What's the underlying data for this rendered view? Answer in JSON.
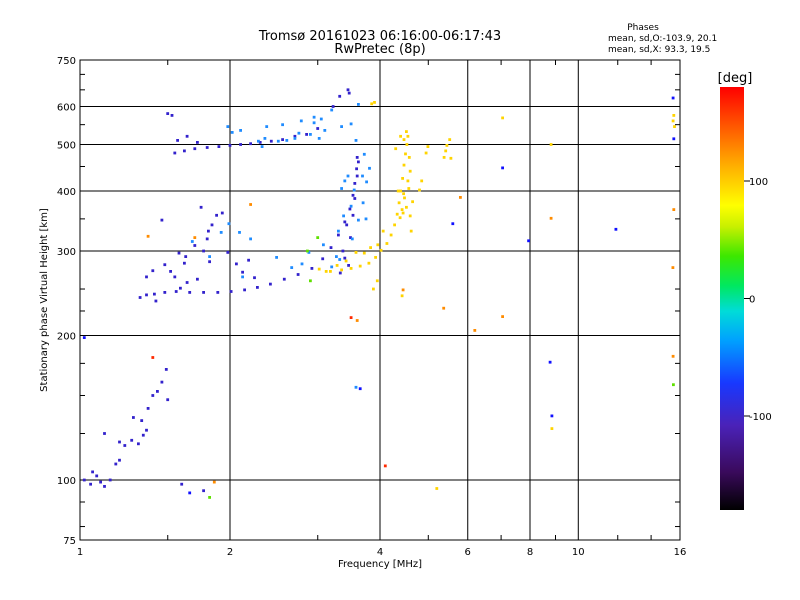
{
  "chart_data": {
    "type": "scatter",
    "title": "Tromsø 20161023 06:16:00-06:17:43",
    "subtitle": "RwPretec (8p)",
    "xlabel": "Frequency [MHz]",
    "ylabel": "Stationary phase Virtual Height [km]",
    "x_scale": "log",
    "y_scale": "log",
    "xlim": [
      1,
      16
    ],
    "ylim": [
      75,
      750
    ],
    "x_ticks": [
      1,
      2,
      4,
      6,
      8,
      10,
      16
    ],
    "y_ticks": [
      75,
      100,
      200,
      300,
      400,
      500,
      600,
      750
    ],
    "grid": true,
    "phases_box": {
      "title": "Phases",
      "line_o": "mean, sd,O:-103.9, 20.1",
      "line_x": "mean, sd,X:  93.3, 19.5"
    },
    "colorbar": {
      "label": "[deg]",
      "range": [
        -180,
        180
      ],
      "ticks": [
        100,
        0,
        -100
      ]
    },
    "series": [
      {
        "points": [
          [
            1.02,
            100
          ],
          [
            1.05,
            98
          ],
          [
            1.08,
            102
          ],
          [
            1.1,
            99
          ],
          [
            1.12,
            97
          ],
          [
            1.06,
            104
          ],
          [
            1.15,
            100
          ],
          [
            1.18,
            108
          ],
          [
            1.2,
            120
          ],
          [
            1.23,
            118
          ],
          [
            1.27,
            121
          ],
          [
            1.31,
            119
          ],
          [
            1.34,
            124
          ],
          [
            1.36,
            127
          ],
          [
            1.33,
            133
          ],
          [
            1.37,
            141
          ],
          [
            1.4,
            150
          ],
          [
            1.43,
            153
          ],
          [
            1.46,
            160
          ],
          [
            1.49,
            170
          ],
          [
            1.32,
            240
          ],
          [
            1.36,
            243
          ],
          [
            1.41,
            244
          ],
          [
            1.48,
            246
          ],
          [
            1.56,
            247
          ],
          [
            1.66,
            246
          ],
          [
            1.77,
            246
          ],
          [
            1.89,
            246
          ],
          [
            2.01,
            247
          ],
          [
            2.14,
            249
          ],
          [
            2.27,
            252
          ],
          [
            2.41,
            256
          ],
          [
            2.57,
            262
          ],
          [
            2.74,
            268
          ],
          [
            2.92,
            276
          ],
          [
            3.07,
            289
          ],
          [
            3.19,
            305
          ],
          [
            3.3,
            324
          ],
          [
            3.4,
            345
          ],
          [
            3.48,
            367
          ],
          [
            3.53,
            392
          ],
          [
            3.56,
            415
          ],
          [
            3.59,
            445
          ],
          [
            3.6,
            470
          ],
          [
            3.33,
            270
          ],
          [
            3.46,
            280
          ],
          [
            3.4,
            290
          ],
          [
            3.49,
            320
          ],
          [
            3.43,
            340
          ],
          [
            3.37,
            300
          ],
          [
            3.53,
            356
          ],
          [
            3.56,
            386
          ],
          [
            3.6,
            430
          ],
          [
            3.62,
            460
          ],
          [
            1.55,
            480
          ],
          [
            1.62,
            485
          ],
          [
            1.7,
            490
          ],
          [
            1.8,
            493
          ],
          [
            1.9,
            495
          ],
          [
            2.0,
            498
          ],
          [
            2.1,
            500
          ],
          [
            2.2,
            502
          ],
          [
            2.3,
            505
          ],
          [
            2.42,
            508
          ],
          [
            2.55,
            512
          ],
          [
            2.7,
            520
          ],
          [
            2.85,
            525
          ],
          [
            3.0,
            540
          ],
          [
            1.57,
            510
          ],
          [
            1.64,
            520
          ],
          [
            1.72,
            505
          ],
          [
            1.5,
            580
          ],
          [
            1.53,
            575
          ],
          [
            3.22,
            600
          ],
          [
            3.32,
            630
          ],
          [
            3.45,
            650
          ],
          [
            3.47,
            640
          ],
          [
            1.36,
            265
          ],
          [
            1.4,
            273
          ],
          [
            1.48,
            281
          ],
          [
            1.58,
            297
          ],
          [
            1.7,
            308
          ],
          [
            1.77,
            300
          ],
          [
            1.82,
            285
          ],
          [
            1.72,
            262
          ],
          [
            1.64,
            258
          ],
          [
            1.55,
            265
          ],
          [
            1.62,
            283
          ],
          [
            1.8,
            318
          ],
          [
            1.84,
            340
          ],
          [
            1.88,
            356
          ],
          [
            1.93,
            360
          ],
          [
            1.75,
            370
          ],
          [
            1.81,
            330
          ],
          [
            1.98,
            298
          ],
          [
            2.06,
            282
          ],
          [
            2.18,
            287
          ],
          [
            2.24,
            264
          ],
          [
            2.12,
            271
          ],
          [
            1.46,
            348
          ],
          [
            1.63,
            292
          ],
          [
            1.52,
            272
          ],
          [
            1.42,
            236
          ],
          [
            1.59,
            251
          ],
          [
            1.77,
            95
          ],
          [
            1.6,
            98
          ],
          [
            1.12,
            125
          ],
          [
            1.2,
            110
          ],
          [
            1.5,
            147
          ],
          [
            1.28,
            135
          ]
        ]
      },
      {
        "points": [
          [
            2.5,
            508
          ],
          [
            2.7,
            515
          ],
          [
            2.9,
            525
          ],
          [
            3.1,
            535
          ],
          [
            3.35,
            545
          ],
          [
            3.5,
            552
          ],
          [
            2.55,
            550
          ],
          [
            2.78,
            560
          ],
          [
            2.95,
            570
          ],
          [
            3.05,
            565
          ],
          [
            3.2,
            590
          ],
          [
            3.62,
            606
          ],
          [
            3.52,
            318
          ],
          [
            3.62,
            348
          ],
          [
            3.7,
            378
          ],
          [
            3.76,
            418
          ],
          [
            3.81,
            446
          ],
          [
            3.72,
            477
          ],
          [
            3.2,
            278
          ],
          [
            3.32,
            288
          ],
          [
            3.5,
            372
          ],
          [
            3.27,
            292
          ],
          [
            3.69,
            430
          ],
          [
            3.75,
            350
          ],
          [
            2.28,
            508
          ],
          [
            2.32,
            495
          ],
          [
            2.37,
            545
          ],
          [
            2.1,
            535
          ],
          [
            3.58,
            510
          ],
          [
            3.02,
            515
          ],
          [
            2.02,
            530
          ],
          [
            1.98,
            545
          ],
          [
            1.92,
            328
          ],
          [
            1.99,
            342
          ],
          [
            2.09,
            328
          ],
          [
            2.2,
            318
          ],
          [
            2.48,
            291
          ],
          [
            2.66,
            277
          ],
          [
            2.79,
            282
          ],
          [
            2.12,
            265
          ],
          [
            3.35,
            405
          ],
          [
            3.4,
            420
          ],
          [
            3.45,
            430
          ],
          [
            3.55,
            402
          ],
          [
            3.3,
            330
          ],
          [
            3.38,
            355
          ],
          [
            2.88,
            298
          ],
          [
            3.08,
            309
          ],
          [
            3.58,
            156
          ],
          [
            1.82,
            292
          ],
          [
            1.68,
            314
          ],
          [
            2.6,
            510
          ],
          [
            2.35,
            515
          ],
          [
            2.75,
            528
          ],
          [
            2.95,
            555
          ]
        ]
      },
      {
        "points": [
          [
            3.18,
            272
          ],
          [
            3.35,
            274
          ],
          [
            3.5,
            276
          ],
          [
            3.65,
            279
          ],
          [
            3.8,
            283
          ],
          [
            3.92,
            291
          ],
          [
            4.02,
            301
          ],
          [
            4.13,
            311
          ],
          [
            4.21,
            324
          ],
          [
            4.28,
            340
          ],
          [
            4.33,
            358
          ],
          [
            4.37,
            378
          ],
          [
            4.4,
            400
          ],
          [
            4.44,
            425
          ],
          [
            4.47,
            453
          ],
          [
            4.5,
            478
          ],
          [
            4.53,
            500
          ],
          [
            4.55,
            520
          ],
          [
            3.02,
            275
          ],
          [
            3.12,
            272
          ],
          [
            3.28,
            280
          ],
          [
            3.42,
            286
          ],
          [
            3.58,
            298
          ],
          [
            3.72,
            297
          ],
          [
            3.83,
            305
          ],
          [
            3.96,
            309
          ],
          [
            4.06,
            330
          ],
          [
            4.35,
            400
          ],
          [
            4.43,
            366
          ],
          [
            4.48,
            387
          ],
          [
            4.39,
            352
          ],
          [
            4.55,
            420
          ],
          [
            4.6,
            440
          ],
          [
            4.65,
            380
          ],
          [
            4.47,
            512
          ],
          [
            4.52,
            532
          ],
          [
            4.58,
            470
          ],
          [
            4.3,
            490
          ],
          [
            4.4,
            520
          ],
          [
            4.46,
            395
          ],
          [
            4.45,
            360
          ],
          [
            4.57,
            405
          ],
          [
            4.6,
            355
          ],
          [
            4.52,
            370
          ],
          [
            4.62,
            330
          ],
          [
            3.88,
            250
          ],
          [
            3.95,
            260
          ],
          [
            3.85,
            608
          ],
          [
            3.9,
            612
          ],
          [
            5.42,
            485
          ],
          [
            5.45,
            498
          ],
          [
            5.52,
            512
          ],
          [
            5.55,
            468
          ],
          [
            5.38,
            470
          ],
          [
            4.95,
            480
          ],
          [
            4.99,
            495
          ],
          [
            4.8,
            402
          ],
          [
            4.85,
            420
          ],
          [
            4.43,
            242
          ],
          [
            7.05,
            568
          ],
          [
            8.82,
            500
          ],
          [
            8.85,
            128
          ],
          [
            15.5,
            560
          ],
          [
            15.55,
            575
          ],
          [
            15.6,
            545
          ],
          [
            5.2,
            96
          ]
        ]
      },
      {
        "points": [
          [
            1.7,
            320
          ],
          [
            2.2,
            375
          ],
          [
            3.6,
            215
          ],
          [
            4.45,
            249
          ],
          [
            5.37,
            228
          ],
          [
            6.2,
            205
          ],
          [
            7.05,
            219
          ],
          [
            8.82,
            351
          ],
          [
            15.55,
            366
          ],
          [
            15.5,
            181
          ],
          [
            15.48,
            277
          ],
          [
            5.8,
            388
          ],
          [
            1.37,
            322
          ],
          [
            1.86,
            99
          ]
        ]
      },
      {
        "points": [
          [
            1.82,
            92
          ],
          [
            2.86,
            300
          ],
          [
            2.9,
            260
          ],
          [
            3.0,
            320
          ],
          [
            15.52,
            158
          ]
        ]
      },
      {
        "points": [
          [
            4.1,
            107
          ],
          [
            3.5,
            218
          ],
          [
            1.4,
            180
          ]
        ]
      },
      {
        "points": [
          [
            1.02,
            198
          ],
          [
            1.66,
            94
          ],
          [
            3.65,
            155
          ],
          [
            5.6,
            342
          ],
          [
            7.05,
            447
          ],
          [
            8.78,
            176
          ],
          [
            8.85,
            136
          ],
          [
            7.95,
            315
          ],
          [
            11.9,
            333
          ],
          [
            15.55,
            514
          ],
          [
            15.5,
            625
          ]
        ]
      }
    ]
  }
}
